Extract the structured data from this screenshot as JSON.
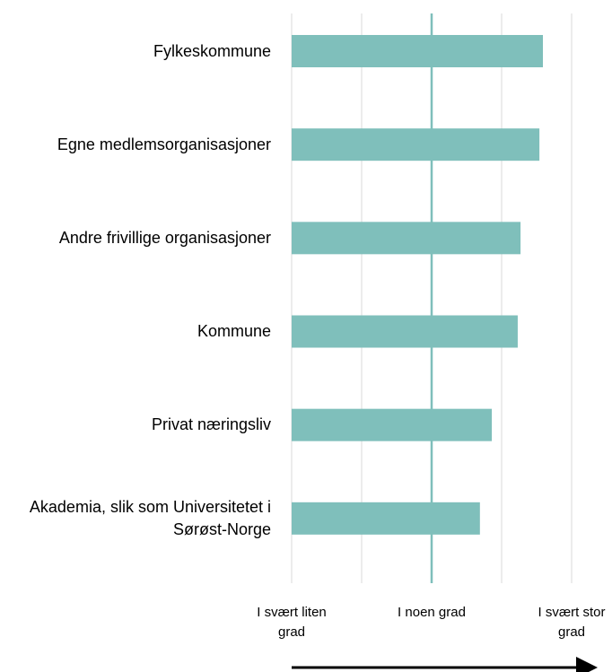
{
  "chart_data": {
    "type": "barh",
    "categories": [
      "Fylkeskommune",
      "Egne medlemsorganisasjoner",
      "Andre frivillige organisasjoner",
      "Kommune",
      "Privat næringsliv",
      "Akademia, slik som Universitetet i Sørøst-Norge"
    ],
    "values": [
      4.59,
      4.54,
      4.27,
      4.23,
      3.86,
      3.69
    ],
    "color": "#7fbfbb",
    "xlim": [
      1,
      5
    ],
    "xticks": [
      {
        "value": 1,
        "label": "I svært liten grad"
      },
      {
        "value": 2,
        "label": null
      },
      {
        "value": 3,
        "label": "I noen grad"
      },
      {
        "value": 4,
        "label": null
      },
      {
        "value": 5,
        "label": "I svært stor grad"
      }
    ],
    "grid": true
  }
}
